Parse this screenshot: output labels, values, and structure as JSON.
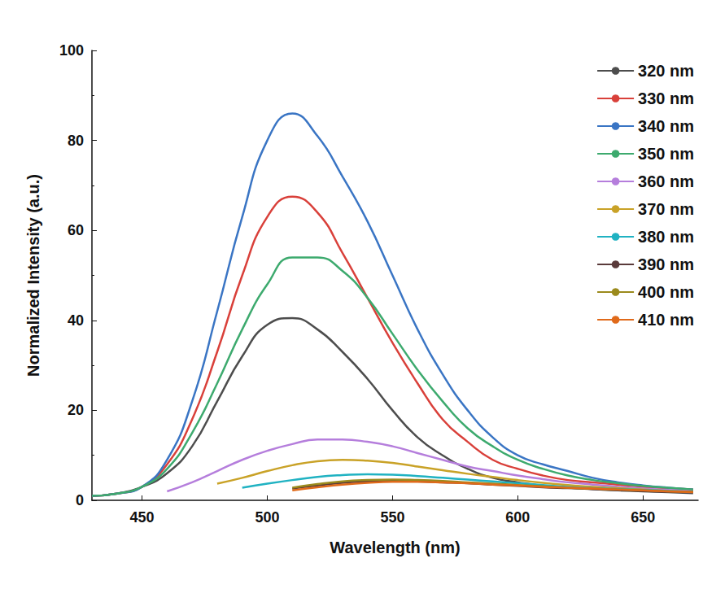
{
  "chart_data": {
    "type": "line",
    "x_label": "Wavelength (nm)",
    "y_label": "Normalized Intensity (a.u.)",
    "x": [
      430,
      440,
      450,
      460,
      470,
      480,
      490,
      500,
      510,
      520,
      530,
      540,
      550,
      560,
      570,
      580,
      590,
      600,
      610,
      620,
      630,
      640,
      650,
      660,
      670
    ],
    "xlim": [
      430,
      672
    ],
    "xticks": [
      450,
      500,
      550,
      600,
      650
    ],
    "ylim": [
      0,
      100
    ],
    "yticks": [
      0,
      20,
      40,
      60,
      80,
      100
    ],
    "grid": false,
    "legend": "upper right",
    "series": [
      {
        "name": "320 nm",
        "color": "#4d4d4d",
        "values": [
          1,
          1.5,
          3,
          6,
          12,
          22,
          32,
          39,
          40.5,
          38,
          33,
          27,
          20,
          14,
          10,
          7,
          5,
          4,
          3.2,
          2.8,
          2.5,
          2.2,
          2,
          1.8,
          1.6
        ]
      },
      {
        "name": "330 nm",
        "color": "#d9403a",
        "values": [
          1,
          1.5,
          3,
          8,
          18,
          33,
          50,
          63,
          67.5,
          64,
          55,
          45,
          35,
          26,
          18,
          13,
          9,
          7,
          5.5,
          4.5,
          4,
          3.5,
          3,
          2.7,
          2.4
        ]
      },
      {
        "name": "340 nm",
        "color": "#3a75c4",
        "values": [
          1,
          1.5,
          3,
          9,
          22,
          42,
          63,
          80,
          86,
          81,
          72,
          62,
          50,
          38,
          28,
          20,
          14,
          10,
          8,
          6.5,
          5,
          4,
          3.3,
          2.8,
          2.4
        ]
      },
      {
        "name": "350 nm",
        "color": "#3daa6e",
        "values": [
          1,
          1.5,
          3,
          7,
          15,
          26,
          38,
          48,
          54,
          54,
          51,
          45,
          37,
          29,
          22,
          16,
          12,
          9,
          7,
          5.5,
          4.5,
          3.8,
          3.2,
          2.8,
          2.4
        ]
      },
      {
        "name": "360 nm",
        "color": "#b57edc",
        "values": [
          null,
          null,
          null,
          2,
          4,
          6.5,
          9,
          11,
          12.5,
          13.5,
          13.5,
          13,
          12,
          10.5,
          9,
          7.5,
          6.5,
          5.5,
          4.7,
          4,
          3.5,
          3,
          2.6,
          2.3,
          2
        ]
      },
      {
        "name": "370 nm",
        "color": "#c9a227",
        "values": [
          null,
          null,
          null,
          null,
          null,
          3.7,
          5,
          6.5,
          7.8,
          8.7,
          9,
          8.8,
          8.3,
          7.5,
          6.7,
          5.9,
          5.2,
          4.5,
          3.9,
          3.4,
          3,
          2.7,
          2.4,
          2.1,
          1.9
        ]
      },
      {
        "name": "380 nm",
        "color": "#20b2c2",
        "values": [
          null,
          null,
          null,
          null,
          null,
          null,
          2.8,
          3.7,
          4.5,
          5.2,
          5.6,
          5.8,
          5.7,
          5.4,
          5,
          4.6,
          4.2,
          3.8,
          3.4,
          3,
          2.7,
          2.5,
          2.3,
          2.1,
          1.9
        ]
      },
      {
        "name": "390 nm",
        "color": "#5a3a3a",
        "values": [
          null,
          null,
          null,
          null,
          null,
          null,
          null,
          null,
          2.6,
          3.3,
          3.9,
          4.2,
          4.3,
          4.2,
          4,
          3.8,
          3.5,
          3.2,
          2.9,
          2.7,
          2.5,
          2.3,
          2.1,
          1.9,
          1.8
        ]
      },
      {
        "name": "400 nm",
        "color": "#9b8a1c",
        "values": [
          null,
          null,
          null,
          null,
          null,
          null,
          null,
          null,
          2.8,
          3.6,
          4.2,
          4.5,
          4.6,
          4.5,
          4.3,
          4,
          3.7,
          3.4,
          3.1,
          2.8,
          2.6,
          2.4,
          2.2,
          2,
          1.9
        ]
      },
      {
        "name": "410 nm",
        "color": "#e06a1a",
        "values": [
          null,
          null,
          null,
          null,
          null,
          null,
          null,
          null,
          2.2,
          2.9,
          3.5,
          3.9,
          4.1,
          4.1,
          4,
          3.8,
          3.5,
          3.3,
          3,
          2.8,
          2.6,
          2.4,
          2.2,
          2,
          1.8
        ]
      }
    ]
  }
}
